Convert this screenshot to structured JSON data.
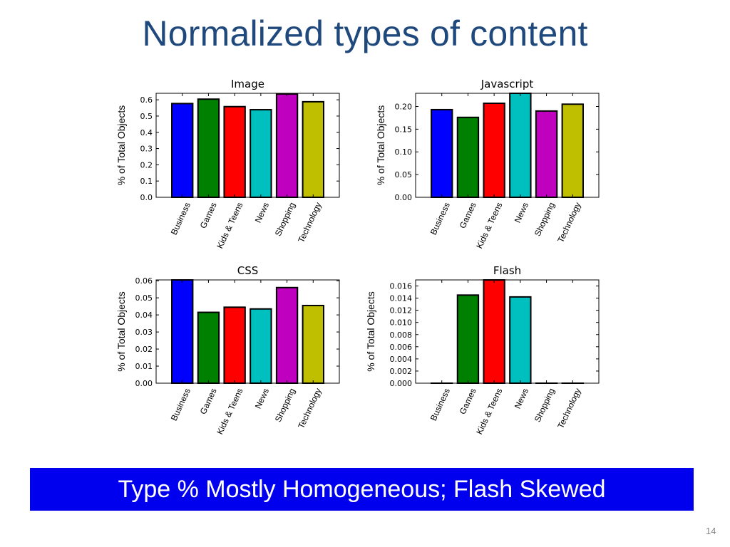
{
  "slide": {
    "title": "Normalized types of content",
    "banner": "Type % Mostly Homogeneous; Flash Skewed",
    "page_number": "14"
  },
  "colors": [
    "#0000ff",
    "#008000",
    "#ff0000",
    "#00bfbf",
    "#bf00bf",
    "#bfbf00"
  ],
  "chart_data": [
    {
      "type": "bar",
      "title": "Image",
      "ylabel": "% of Total Objects",
      "categories": [
        "Business",
        "Games",
        "Kids & Teens",
        "News",
        "Shopping",
        "Technology"
      ],
      "values": [
        0.577,
        0.604,
        0.558,
        0.539,
        0.636,
        0.588
      ],
      "ylim": [
        0,
        0.64
      ],
      "yticks": [
        "0.0",
        "0.1",
        "0.2",
        "0.3",
        "0.4",
        "0.5",
        "0.6"
      ]
    },
    {
      "type": "bar",
      "title": "Javascript",
      "ylabel": "% of Total Objects",
      "categories": [
        "Business",
        "Games",
        "Kids & Teens",
        "News",
        "Shopping",
        "Technology"
      ],
      "values": [
        0.193,
        0.176,
        0.207,
        0.229,
        0.19,
        0.205
      ],
      "ylim": [
        0,
        0.229
      ],
      "yticks": [
        "0.00",
        "0.05",
        "0.10",
        "0.15",
        "0.20"
      ]
    },
    {
      "type": "bar",
      "title": "CSS",
      "ylabel": "% of Total Objects",
      "categories": [
        "Business",
        "Games",
        "Kids & Teens",
        "News",
        "Shopping",
        "Technology"
      ],
      "values": [
        0.0605,
        0.0415,
        0.0445,
        0.0435,
        0.056,
        0.0455
      ],
      "ylim": [
        0,
        0.0605
      ],
      "yticks": [
        "0.00",
        "0.01",
        "0.02",
        "0.03",
        "0.04",
        "0.05",
        "0.06"
      ]
    },
    {
      "type": "bar",
      "title": "Flash",
      "ylabel": "% of Total Objects",
      "categories": [
        "Business",
        "Games",
        "Kids & Teens",
        "News",
        "Shopping",
        "Technology"
      ],
      "values": [
        0.0,
        0.0145,
        0.017,
        0.0142,
        0.0,
        0.0
      ],
      "ylim": [
        0,
        0.017
      ],
      "yticks": [
        "0.000",
        "0.002",
        "0.004",
        "0.006",
        "0.008",
        "0.010",
        "0.012",
        "0.014",
        "0.016"
      ]
    }
  ]
}
